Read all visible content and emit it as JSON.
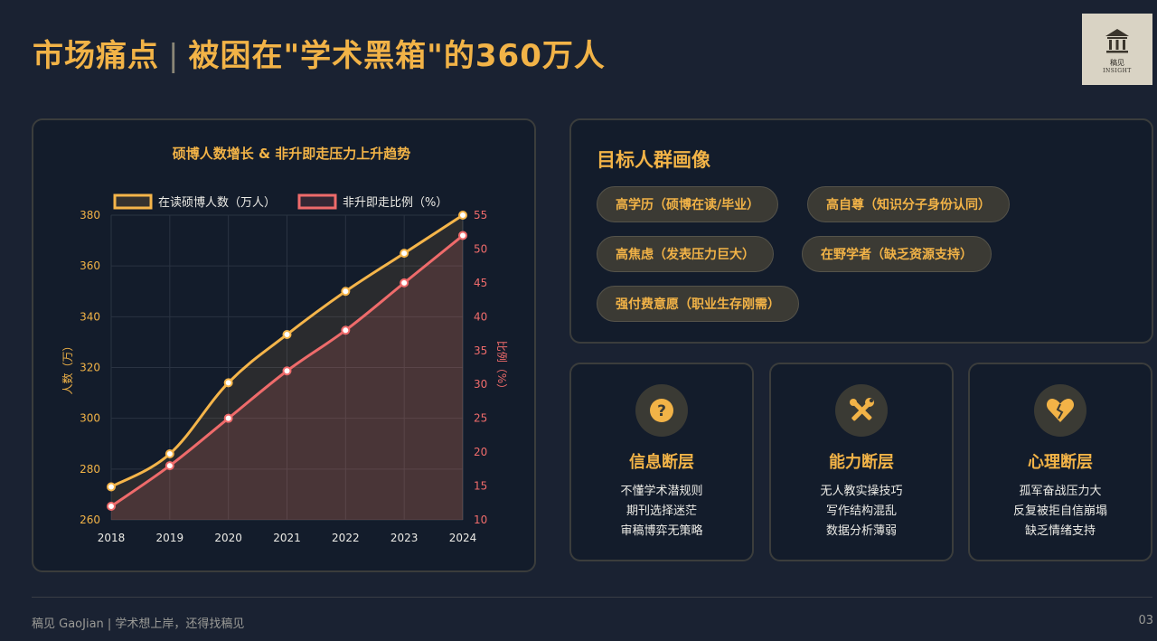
{
  "header": {
    "title_main": "市场痛点",
    "title_sep": "|",
    "title_sub": "被困在\"学术黑箱\"的360万人"
  },
  "logo": {
    "name": "稿见",
    "sub": "INSIGHT"
  },
  "chart_data": {
    "type": "line",
    "title": "硕博人数增长 & 非升即走压力上升趋势",
    "x": [
      "2018",
      "2019",
      "2020",
      "2021",
      "2022",
      "2023",
      "2024"
    ],
    "series": [
      {
        "name": "在读硕博人数（万人）",
        "axis": "left",
        "values": [
          273,
          286,
          314,
          333,
          350,
          365,
          380
        ],
        "color": "#f5b54a"
      },
      {
        "name": "非升即走比例（%）",
        "axis": "right",
        "values": [
          12,
          18,
          25,
          32,
          38,
          45,
          52
        ],
        "color": "#ef6b6b"
      }
    ],
    "ylabel": "人数（万）",
    "y2label": "比例（%）",
    "ylim": [
      260,
      380
    ],
    "y2lim": [
      10,
      55
    ],
    "yticks": [
      "260",
      "280",
      "300",
      "320",
      "340",
      "360",
      "380"
    ],
    "y2ticks": [
      "10",
      "15",
      "20",
      "25",
      "30",
      "35",
      "40",
      "45",
      "50",
      "55"
    ],
    "grid": true,
    "legend": "top"
  },
  "persona": {
    "title": "目标人群画像",
    "tags": [
      "高学历（硕博在读/毕业）",
      "高自尊（知识分子身份认同）",
      "高焦虑（发表压力巨大）",
      "在野学者（缺乏资源支持）",
      "强付费意愿（职业生存刚需）"
    ]
  },
  "cards": [
    {
      "icon": "question-icon",
      "title": "信息断层",
      "lines": [
        "不懂学术潜规则",
        "期刊选择迷茫",
        "审稿博弈无策略"
      ]
    },
    {
      "icon": "tools-icon",
      "title": "能力断层",
      "lines": [
        "无人教实操技巧",
        "写作结构混乱",
        "数据分析薄弱"
      ]
    },
    {
      "icon": "broken-heart-icon",
      "title": "心理断层",
      "lines": [
        "孤军奋战压力大",
        "反复被拒自信崩塌",
        "缺乏情绪支持"
      ]
    }
  ],
  "footer": {
    "text": "稿见 GaoJian | 学术想上岸，还得找稿见",
    "page": "03"
  },
  "colors": {
    "accent": "#f2b347",
    "background": "#1a2232",
    "panel": "#131c2b",
    "series1": "#f5b54a",
    "series2": "#ef6b6b"
  }
}
